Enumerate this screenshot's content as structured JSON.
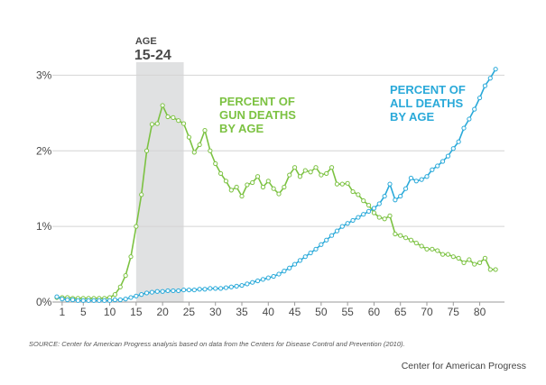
{
  "chart_data": {
    "type": "line",
    "xlabel": "",
    "ylabel": "",
    "xlim": [
      0,
      84
    ],
    "ylim": [
      0,
      3.1
    ],
    "x_ticks": [
      1,
      5,
      10,
      15,
      20,
      25,
      30,
      35,
      40,
      45,
      50,
      55,
      60,
      65,
      70,
      75,
      80
    ],
    "y_ticks": [
      {
        "value": 0,
        "label": "0%"
      },
      {
        "value": 1,
        "label": "1%"
      },
      {
        "value": 2,
        "label": "2%"
      },
      {
        "value": 3,
        "label": "3%"
      }
    ],
    "highlight_band": {
      "x_start": 15,
      "x_end": 24,
      "label_small": "AGE",
      "label_big": "15-24"
    },
    "colors": {
      "gun": "#7cc242",
      "all": "#29a9d9",
      "band": "#e0e1e2",
      "grid": "#d4d4d4",
      "axis": "#9a9a9a"
    },
    "series": [
      {
        "name": "gun",
        "label_lines": [
          "PERCENT OF",
          "GUN DEATHS",
          "BY AGE"
        ],
        "color": "#7cc242",
        "x": [
          0,
          1,
          2,
          3,
          4,
          5,
          6,
          7,
          8,
          9,
          10,
          11,
          12,
          13,
          14,
          15,
          16,
          17,
          18,
          19,
          20,
          21,
          22,
          23,
          24,
          25,
          26,
          27,
          28,
          29,
          30,
          31,
          32,
          33,
          34,
          35,
          36,
          37,
          38,
          39,
          40,
          41,
          42,
          43,
          44,
          45,
          46,
          47,
          48,
          49,
          50,
          51,
          52,
          53,
          54,
          55,
          56,
          57,
          58,
          59,
          60,
          61,
          62,
          63,
          64,
          65,
          66,
          67,
          68,
          69,
          70,
          71,
          72,
          73,
          74,
          75,
          76,
          77,
          78,
          79,
          80,
          81,
          82,
          83
        ],
        "values": [
          0.06,
          0.06,
          0.06,
          0.05,
          0.05,
          0.05,
          0.05,
          0.05,
          0.05,
          0.05,
          0.06,
          0.1,
          0.2,
          0.35,
          0.6,
          1.0,
          1.42,
          2.0,
          2.35,
          2.36,
          2.6,
          2.45,
          2.44,
          2.4,
          2.36,
          2.18,
          1.98,
          2.08,
          2.27,
          2.0,
          1.83,
          1.7,
          1.6,
          1.48,
          1.52,
          1.4,
          1.55,
          1.58,
          1.66,
          1.52,
          1.6,
          1.5,
          1.43,
          1.52,
          1.68,
          1.78,
          1.66,
          1.74,
          1.72,
          1.78,
          1.68,
          1.7,
          1.78,
          1.56,
          1.56,
          1.57,
          1.46,
          1.42,
          1.34,
          1.28,
          1.18,
          1.12,
          1.1,
          1.14,
          0.9,
          0.88,
          0.85,
          0.82,
          0.78,
          0.74,
          0.7,
          0.7,
          0.68,
          0.63,
          0.63,
          0.6,
          0.58,
          0.52,
          0.56,
          0.5,
          0.52,
          0.58,
          0.43,
          0.43
        ]
      },
      {
        "name": "all",
        "label_lines": [
          "PERCENT OF",
          "ALL DEATHS",
          "BY AGE"
        ],
        "color": "#29a9d9",
        "x": [
          0,
          1,
          2,
          3,
          4,
          5,
          6,
          7,
          8,
          9,
          10,
          11,
          12,
          13,
          14,
          15,
          16,
          17,
          18,
          19,
          20,
          21,
          22,
          23,
          24,
          25,
          26,
          27,
          28,
          29,
          30,
          31,
          32,
          33,
          34,
          35,
          36,
          37,
          38,
          39,
          40,
          41,
          42,
          43,
          44,
          45,
          46,
          47,
          48,
          49,
          50,
          51,
          52,
          53,
          54,
          55,
          56,
          57,
          58,
          59,
          60,
          61,
          62,
          63,
          64,
          65,
          66,
          67,
          68,
          69,
          70,
          71,
          72,
          73,
          74,
          75,
          76,
          77,
          78,
          79,
          80,
          81,
          82,
          83
        ],
        "values": [
          0.07,
          0.04,
          0.03,
          0.03,
          0.02,
          0.02,
          0.02,
          0.02,
          0.02,
          0.02,
          0.02,
          0.03,
          0.03,
          0.04,
          0.06,
          0.08,
          0.1,
          0.12,
          0.13,
          0.14,
          0.14,
          0.15,
          0.15,
          0.15,
          0.16,
          0.16,
          0.16,
          0.17,
          0.17,
          0.18,
          0.18,
          0.18,
          0.19,
          0.2,
          0.21,
          0.22,
          0.24,
          0.26,
          0.28,
          0.3,
          0.32,
          0.34,
          0.37,
          0.41,
          0.45,
          0.5,
          0.55,
          0.6,
          0.65,
          0.7,
          0.76,
          0.82,
          0.88,
          0.94,
          1.0,
          1.04,
          1.08,
          1.12,
          1.16,
          1.2,
          1.24,
          1.3,
          1.4,
          1.56,
          1.35,
          1.4,
          1.5,
          1.64,
          1.6,
          1.62,
          1.66,
          1.75,
          1.8,
          1.86,
          1.93,
          2.03,
          2.12,
          2.3,
          2.42,
          2.55,
          2.7,
          2.86,
          2.96,
          3.08
        ]
      }
    ]
  },
  "source_note": "SOURCE: Center for American Progress analysis based on data from the Centers for Disease Control and Prevention (2010).",
  "credit": "Center for American Progress"
}
